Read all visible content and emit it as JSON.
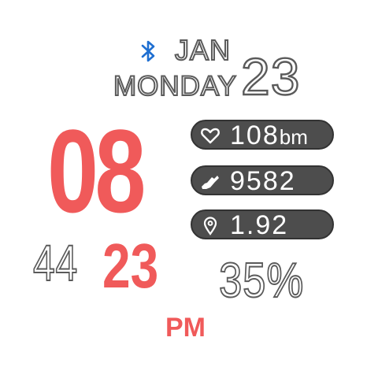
{
  "status": {
    "bluetooth_icon": "bluetooth-icon"
  },
  "date": {
    "month": "JAN",
    "weekday": "MONDAY",
    "day": "23"
  },
  "time": {
    "hour": "08",
    "minute": "44",
    "second": "23",
    "period": "PM"
  },
  "metrics": {
    "heart_rate": {
      "icon": "heart-icon",
      "value": "108",
      "unit": "bm"
    },
    "steps": {
      "icon": "shoe-icon",
      "value": "9582"
    },
    "distance": {
      "icon": "location-pin-icon",
      "value": "1.92"
    }
  },
  "battery": {
    "value": "35%"
  },
  "colors": {
    "accent": "#f05a5a",
    "bluetooth": "#1f6fd1",
    "pill": "#4d4d4d"
  }
}
